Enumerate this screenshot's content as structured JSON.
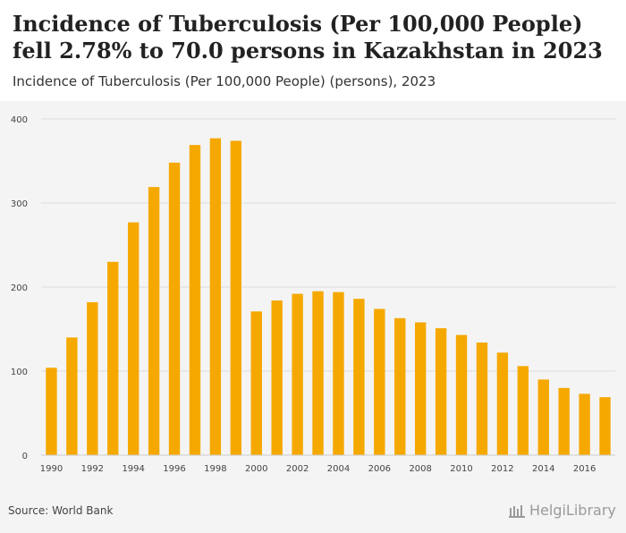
{
  "header": {
    "title": "Incidence of Tuberculosis (Per 100,000 People) fell 2.78% to 70.0 persons in Kazakhstan in 2023",
    "subtitle": "Incidence of Tuberculosis (Per 100,000 People) (persons), 2023"
  },
  "footer": {
    "source": "Source: World Bank",
    "logo_text": "HelgiLibrary"
  },
  "colors": {
    "bar": "#f5a800",
    "grid": "#dddddd",
    "axis_text": "#444444"
  },
  "chart_data": {
    "type": "bar",
    "title": "Incidence of Tuberculosis (Per 100,000 People) (persons), 2023",
    "xlabel": "",
    "ylabel": "",
    "ylim": [
      0,
      400
    ],
    "yticks": [
      0,
      100,
      200,
      300,
      400
    ],
    "grid": true,
    "categories": [
      "1990",
      "1991",
      "1992",
      "1993",
      "1994",
      "1995",
      "1996",
      "1997",
      "1998",
      "1999",
      "2000",
      "2001",
      "2002",
      "2003",
      "2004",
      "2005",
      "2006",
      "2007",
      "2008",
      "2009",
      "2010",
      "2011",
      "2012",
      "2013",
      "2014",
      "2015",
      "2016",
      "2017"
    ],
    "values": [
      104,
      140,
      182,
      230,
      277,
      319,
      348,
      369,
      377,
      374,
      171,
      184,
      192,
      195,
      194,
      186,
      174,
      163,
      158,
      151,
      143,
      134,
      122,
      106,
      90,
      80,
      73,
      69
    ],
    "xtick_labels": [
      "1990",
      "1992",
      "1994",
      "1996",
      "1998",
      "2000",
      "2002",
      "2004",
      "2006",
      "2008",
      "2010",
      "2012",
      "2014",
      "2016"
    ]
  }
}
